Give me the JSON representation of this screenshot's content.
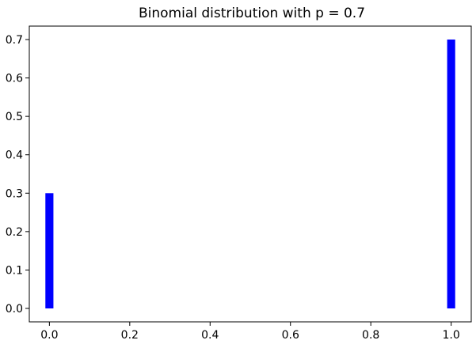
{
  "chart_data": {
    "type": "bar",
    "title": "Binomial distribution with p = 0.7",
    "xlabel": "",
    "ylabel": "",
    "x": [
      0,
      1
    ],
    "values": [
      0.3,
      0.7
    ],
    "bar_color": "#0000ff",
    "xlim": [
      -0.05,
      1.05
    ],
    "ylim": [
      -0.035,
      0.735
    ],
    "xticks": [
      0.0,
      0.2,
      0.4,
      0.6,
      0.8,
      1.0
    ],
    "xtick_labels": [
      "0.0",
      "0.2",
      "0.4",
      "0.6",
      "0.8",
      "1.0"
    ],
    "yticks": [
      0.0,
      0.1,
      0.2,
      0.3,
      0.4,
      0.5,
      0.6,
      0.7
    ],
    "ytick_labels": [
      "0.0",
      "0.1",
      "0.2",
      "0.3",
      "0.4",
      "0.5",
      "0.6",
      "0.7"
    ],
    "grid": false,
    "legend": false
  }
}
